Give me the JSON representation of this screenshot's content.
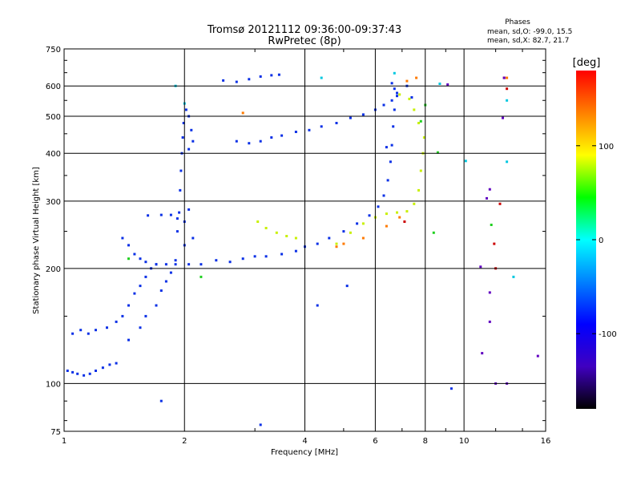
{
  "chart_data": {
    "type": "scatter",
    "title": "Tromsø 20121112 09:36:00-09:37:43",
    "subtitle": "RwPretec (8p)",
    "xlabel": "Frequency [MHz]",
    "ylabel": "Stationary phase Virtual Height [km]",
    "x_scale": "log",
    "y_scale": "log",
    "xlim": [
      1,
      16
    ],
    "ylim": [
      75,
      750
    ],
    "x_ticks": [
      1,
      2,
      4,
      6,
      8,
      10,
      16
    ],
    "x_tick_labels": [
      "1",
      "2",
      "4",
      "6",
      "8",
      "10",
      "16"
    ],
    "y_ticks": [
      75,
      100,
      200,
      300,
      400,
      500,
      600,
      750
    ],
    "y_tick_labels": [
      "75",
      "100",
      "200",
      "300",
      "400",
      "500",
      "600",
      "750"
    ],
    "grid": true,
    "phases_header": "Phases",
    "phase_stats": [
      "mean, sd,O: -99.0, 15.5",
      "mean, sd,X:  82.7, 21.7"
    ],
    "colorbar": {
      "label": "[deg]",
      "range": [
        -180,
        180
      ],
      "ticks": [
        100,
        0,
        -100
      ],
      "tick_labels": [
        "100",
        "0",
        "-100"
      ],
      "colors": [
        "#ff0000",
        "#ff8000",
        "#ffff00",
        "#00ff00",
        "#00ffff",
        "#0080ff",
        "#0000ff",
        "#4000c0",
        "#000000"
      ]
    },
    "series": [
      {
        "color": "#0a30e6",
        "points": [
          [
            1.02,
            108
          ],
          [
            1.05,
            107
          ],
          [
            1.08,
            106
          ],
          [
            1.12,
            105
          ],
          [
            1.16,
            106
          ],
          [
            1.2,
            108
          ],
          [
            1.25,
            110
          ],
          [
            1.3,
            112
          ],
          [
            1.35,
            113
          ],
          [
            1.05,
            135
          ],
          [
            1.1,
            138
          ],
          [
            1.15,
            135
          ],
          [
            1.2,
            138
          ],
          [
            1.28,
            140
          ],
          [
            1.35,
            145
          ],
          [
            1.4,
            150
          ],
          [
            1.45,
            160
          ],
          [
            1.5,
            172
          ],
          [
            1.55,
            180
          ],
          [
            1.6,
            190
          ],
          [
            1.65,
            200
          ],
          [
            1.7,
            205
          ],
          [
            1.45,
            130
          ],
          [
            1.55,
            140
          ],
          [
            1.6,
            150
          ],
          [
            1.7,
            160
          ],
          [
            1.75,
            175
          ],
          [
            1.8,
            185
          ],
          [
            1.85,
            195
          ],
          [
            1.9,
            210
          ],
          [
            1.4,
            240
          ],
          [
            1.45,
            230
          ],
          [
            1.5,
            218
          ],
          [
            1.55,
            212
          ],
          [
            1.6,
            208
          ],
          [
            1.7,
            205
          ],
          [
            1.8,
            205
          ],
          [
            1.9,
            205
          ],
          [
            1.62,
            275
          ],
          [
            1.75,
            276
          ],
          [
            1.85,
            276
          ],
          [
            1.92,
            270
          ],
          [
            1.92,
            250
          ],
          [
            1.94,
            280
          ],
          [
            1.95,
            320
          ],
          [
            1.96,
            360
          ],
          [
            1.97,
            400
          ],
          [
            1.98,
            440
          ],
          [
            1.99,
            480
          ],
          [
            2.02,
            520
          ],
          [
            2.05,
            500
          ],
          [
            2.08,
            460
          ],
          [
            2.1,
            430
          ],
          [
            2.05,
            410
          ],
          [
            2.05,
            205
          ],
          [
            2.2,
            205
          ],
          [
            2.4,
            210
          ],
          [
            2.6,
            208
          ],
          [
            2.8,
            212
          ],
          [
            3.0,
            215
          ],
          [
            3.2,
            215
          ],
          [
            3.5,
            218
          ],
          [
            3.8,
            222
          ],
          [
            4.0,
            228
          ],
          [
            4.3,
            232
          ],
          [
            4.6,
            240
          ],
          [
            5.0,
            250
          ],
          [
            5.4,
            262
          ],
          [
            5.8,
            275
          ],
          [
            6.1,
            290
          ],
          [
            6.3,
            310
          ],
          [
            6.45,
            340
          ],
          [
            6.55,
            380
          ],
          [
            6.6,
            420
          ],
          [
            6.65,
            470
          ],
          [
            6.7,
            520
          ],
          [
            2.0,
            230
          ],
          [
            2.1,
            240
          ],
          [
            2.0,
            265
          ],
          [
            2.05,
            285
          ],
          [
            2.7,
            430
          ],
          [
            2.9,
            425
          ],
          [
            3.1,
            430
          ],
          [
            3.3,
            440
          ],
          [
            3.5,
            445
          ],
          [
            3.8,
            455
          ],
          [
            4.1,
            460
          ],
          [
            4.4,
            470
          ],
          [
            4.8,
            480
          ],
          [
            5.2,
            495
          ],
          [
            5.6,
            505
          ],
          [
            6.0,
            520
          ],
          [
            6.3,
            535
          ],
          [
            6.6,
            550
          ],
          [
            6.8,
            565
          ],
          [
            2.5,
            620
          ],
          [
            2.7,
            615
          ],
          [
            2.9,
            625
          ],
          [
            3.1,
            635
          ],
          [
            3.3,
            640
          ],
          [
            3.45,
            642
          ],
          [
            6.6,
            610
          ],
          [
            6.7,
            590
          ],
          [
            6.8,
            575
          ],
          [
            7.2,
            600
          ],
          [
            7.4,
            560
          ],
          [
            1.75,
            90
          ],
          [
            3.1,
            78
          ],
          [
            4.3,
            160
          ],
          [
            5.1,
            180
          ],
          [
            9.3,
            97
          ],
          [
            6.4,
            415
          ]
        ]
      },
      {
        "color": "#c8f000",
        "points": [
          [
            3.05,
            265
          ],
          [
            3.2,
            255
          ],
          [
            3.4,
            248
          ],
          [
            3.6,
            243
          ],
          [
            3.8,
            240
          ],
          [
            4.8,
            232
          ],
          [
            5.2,
            248
          ],
          [
            5.6,
            262
          ],
          [
            6.0,
            272
          ],
          [
            6.4,
            278
          ],
          [
            6.8,
            280
          ],
          [
            7.2,
            282
          ],
          [
            7.5,
            295
          ],
          [
            7.7,
            320
          ],
          [
            7.8,
            360
          ],
          [
            7.9,
            400
          ],
          [
            7.95,
            440
          ],
          [
            7.7,
            480
          ],
          [
            7.5,
            520
          ],
          [
            7.3,
            555
          ],
          [
            6.9,
            570
          ]
        ]
      },
      {
        "color": "#ff7a00",
        "points": [
          [
            4.8,
            228
          ],
          [
            5.0,
            232
          ],
          [
            5.6,
            240
          ],
          [
            6.4,
            258
          ],
          [
            6.9,
            272
          ],
          [
            7.6,
            630
          ],
          [
            7.2,
            618
          ],
          [
            12.8,
            630
          ],
          [
            2.8,
            510
          ]
        ]
      },
      {
        "color": "#cc0000",
        "points": [
          [
            7.1,
            265
          ],
          [
            12.6,
            630
          ],
          [
            12.8,
            590
          ],
          [
            12.3,
            295
          ],
          [
            12.0,
            200
          ],
          [
            11.9,
            232
          ]
        ]
      },
      {
        "color": "#00c8e0",
        "points": [
          [
            4.4,
            630
          ],
          [
            6.7,
            648
          ],
          [
            8.7,
            608
          ],
          [
            10.1,
            382
          ],
          [
            12.8,
            380
          ],
          [
            12.8,
            550
          ],
          [
            13.3,
            190
          ],
          [
            1.9,
            600
          ],
          [
            2.0,
            540
          ]
        ]
      },
      {
        "color": "#20d020",
        "points": [
          [
            7.8,
            485
          ],
          [
            8.0,
            535
          ],
          [
            8.6,
            402
          ],
          [
            8.4,
            248
          ],
          [
            1.45,
            212
          ],
          [
            2.2,
            190
          ],
          [
            11.7,
            260
          ]
        ]
      },
      {
        "color": "#6000c0",
        "points": [
          [
            11.6,
            322
          ],
          [
            11.4,
            305
          ],
          [
            11.0,
            202
          ],
          [
            9.1,
            605
          ],
          [
            12.6,
            630
          ],
          [
            11.6,
            145
          ],
          [
            11.1,
            120
          ],
          [
            12.0,
            100
          ],
          [
            11.6,
            173
          ],
          [
            12.8,
            100
          ],
          [
            15.3,
            118
          ],
          [
            12.5,
            495
          ]
        ]
      }
    ]
  }
}
